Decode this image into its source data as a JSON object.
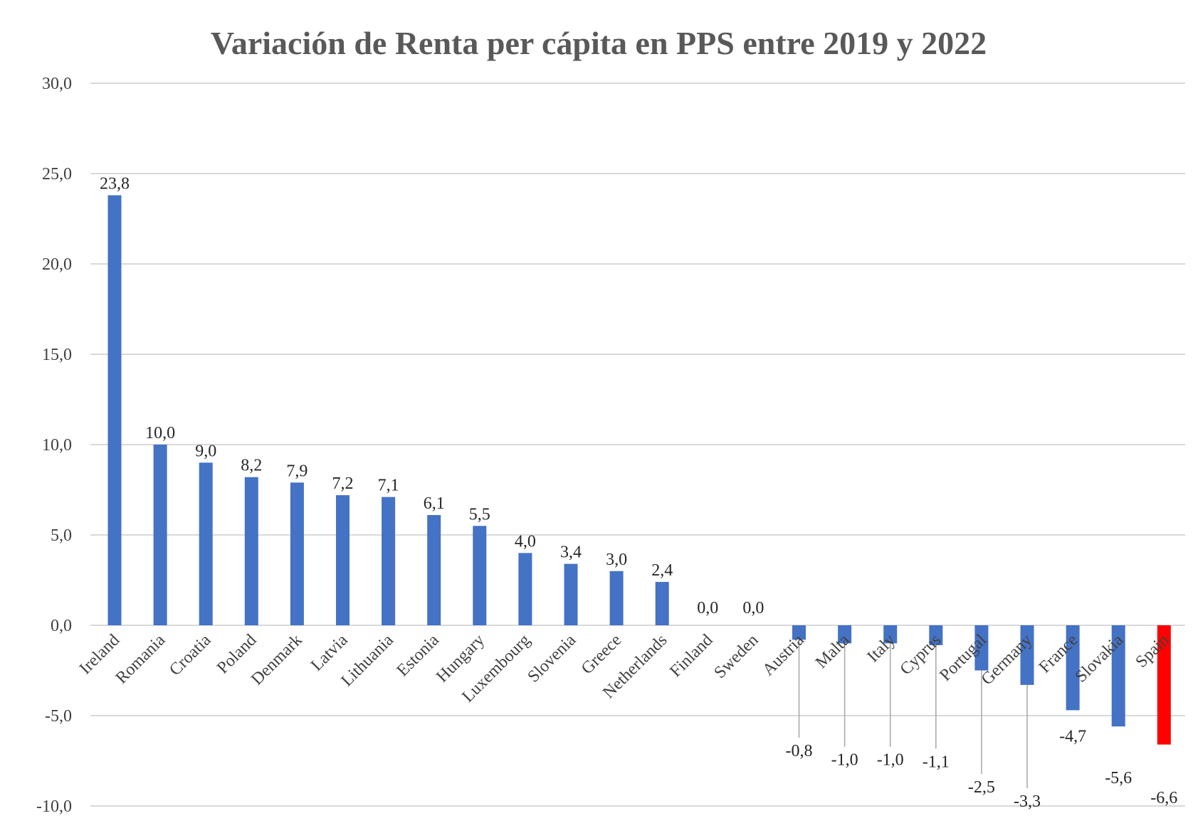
{
  "chart_data": {
    "type": "bar",
    "title": "Variación de Renta per cápita en PPS entre 2019 y 2022",
    "xlabel": "",
    "ylabel": "",
    "ylim": [
      -10,
      30
    ],
    "y_ticks": [
      30,
      25,
      20,
      15,
      10,
      5,
      0,
      -5,
      -10
    ],
    "y_tick_labels": [
      "30,0",
      "25,0",
      "20,0",
      "15,0",
      "10,0",
      "5,0",
      "0,0",
      "-5,0",
      "-10,0"
    ],
    "grid": true,
    "legend": "none",
    "categories": [
      "Ireland",
      "Romania",
      "Croatia",
      "Poland",
      "Denmark",
      "Latvia",
      "Lithuania",
      "Estonia",
      "Hungary",
      "Luxembourg",
      "Slovenia",
      "Greece",
      "Netherlands",
      "Finland",
      "Sweden",
      "Austria",
      "Malta",
      "Italy",
      "Cyprus",
      "Portugal",
      "Germany",
      "France",
      "Slovakia",
      "Spain"
    ],
    "values": [
      23.8,
      10.0,
      9.0,
      8.2,
      7.9,
      7.2,
      7.1,
      6.1,
      5.5,
      4.0,
      3.4,
      3.0,
      2.4,
      0.0,
      0.0,
      -0.8,
      -1.0,
      -1.0,
      -1.1,
      -2.5,
      -3.3,
      -4.7,
      -5.6,
      -6.6
    ],
    "value_labels": [
      "23,8",
      "10,0",
      "9,0",
      "8,2",
      "7,9",
      "7,2",
      "7,1",
      "6,1",
      "5,5",
      "4,0",
      "3,4",
      "3,0",
      "2,4",
      "0,0",
      "0,0",
      "-0,8",
      "-1,0",
      "-1,0",
      "-1,1",
      "-2,5",
      "-3,3",
      "-4,7",
      "-5,6",
      "-6,6"
    ],
    "label_offsets": [
      0,
      0,
      0,
      0,
      0,
      0,
      0,
      0,
      0,
      0,
      0,
      0,
      0,
      0,
      0,
      -5.5,
      -5.8,
      -5.8,
      -5.8,
      -5.8,
      -5.8,
      -0.8,
      -2.2,
      -2.3
    ],
    "colors": {
      "default": "#4472c4",
      "highlight": "#ff0000"
    },
    "highlight": [
      "Spain"
    ]
  }
}
